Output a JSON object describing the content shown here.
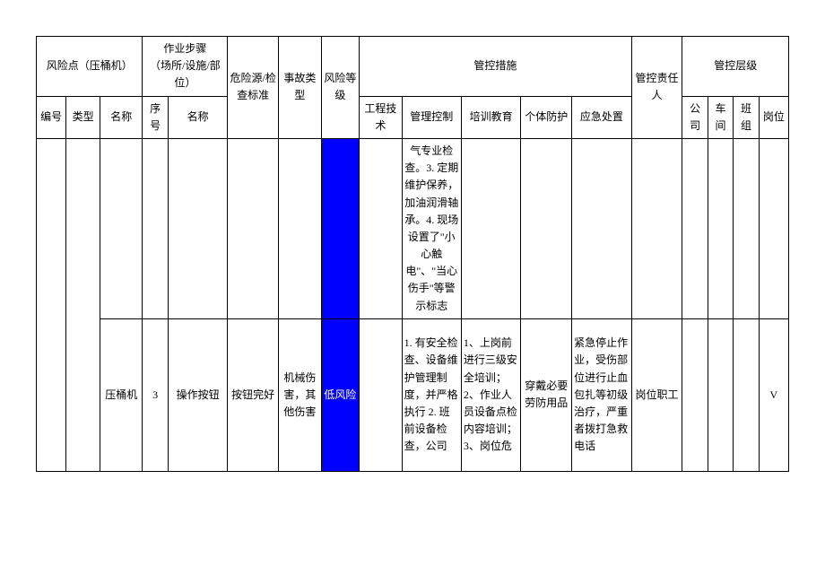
{
  "header": {
    "risk_point": "风险点（压桶机）",
    "work_steps": "作业步骤\n（场所/设施/部位）",
    "hazard_source": "危险源/检查标准",
    "accident_type": "事故类型",
    "risk_level": "风险等级",
    "control_measures": "管控措施",
    "responsible": "管控责任人",
    "control_level": "管控层级",
    "number": "编号",
    "type": "类型",
    "name": "名称",
    "seq": "序号",
    "step_name": "名称",
    "eng_tech": "工程技术",
    "mgmt_ctrl": "管理控制",
    "training": "培训教育",
    "ppe": "个体防护",
    "emergency": "应急处置",
    "company": "公司",
    "workshop": "车间",
    "team": "班组",
    "post": "岗位"
  },
  "rows": [
    {
      "mgmt_ctrl": "气专业检查。3. 定期维护保养，加油润滑轴承。4. 现场设置了\"小心触电\"、\"当心伤手\"等警示标志"
    },
    {
      "name": "压桶机",
      "seq": "3",
      "step_name": "操作按钮",
      "hazard_source": "按钮完好",
      "accident_type": "机械伤害，其他伤害",
      "risk_level": "低风险",
      "risk_bg": "#0000ff",
      "mgmt_ctrl": "1. 有安全检查、设备维护管理制度，并严格执行 2. 班前设备检查，公司",
      "training": "1、上岗前进行三级安全培训；2、作业人员设备点检内容培训；3、岗位危",
      "ppe": "穿戴必要劳防用品",
      "emergency": "紧急停止作业，受伤部位进行止血包扎等初级治疗，严重者拨打急救电话",
      "responsible": "岗位职工",
      "post": "V"
    }
  ]
}
